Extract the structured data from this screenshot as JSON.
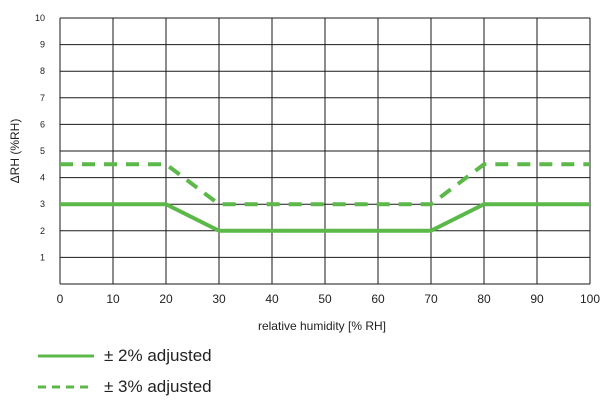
{
  "chart_data": {
    "type": "line",
    "xlabel": "relative humidity [% RH]",
    "ylabel": "ΔRH (%RH)",
    "xlim": [
      0,
      100
    ],
    "ylim": [
      0,
      10
    ],
    "x_ticks": [
      0,
      10,
      20,
      30,
      40,
      50,
      60,
      70,
      80,
      90,
      100
    ],
    "y_ticks": [
      1,
      2,
      3,
      4,
      5,
      6,
      7,
      8,
      9,
      10
    ],
    "grid": true,
    "legend_position": "bottom-left",
    "line_color": "#5cb848",
    "series": [
      {
        "name": "± 2% adjusted",
        "style": "solid",
        "x": [
          0,
          20,
          30,
          70,
          80,
          100
        ],
        "y": [
          3,
          3,
          2,
          2,
          3,
          3
        ]
      },
      {
        "name": "± 3% adjusted",
        "style": "dashed",
        "x": [
          0,
          20,
          30,
          70,
          80,
          100
        ],
        "y": [
          4.5,
          4.5,
          3,
          3,
          4.5,
          4.5
        ]
      }
    ]
  }
}
